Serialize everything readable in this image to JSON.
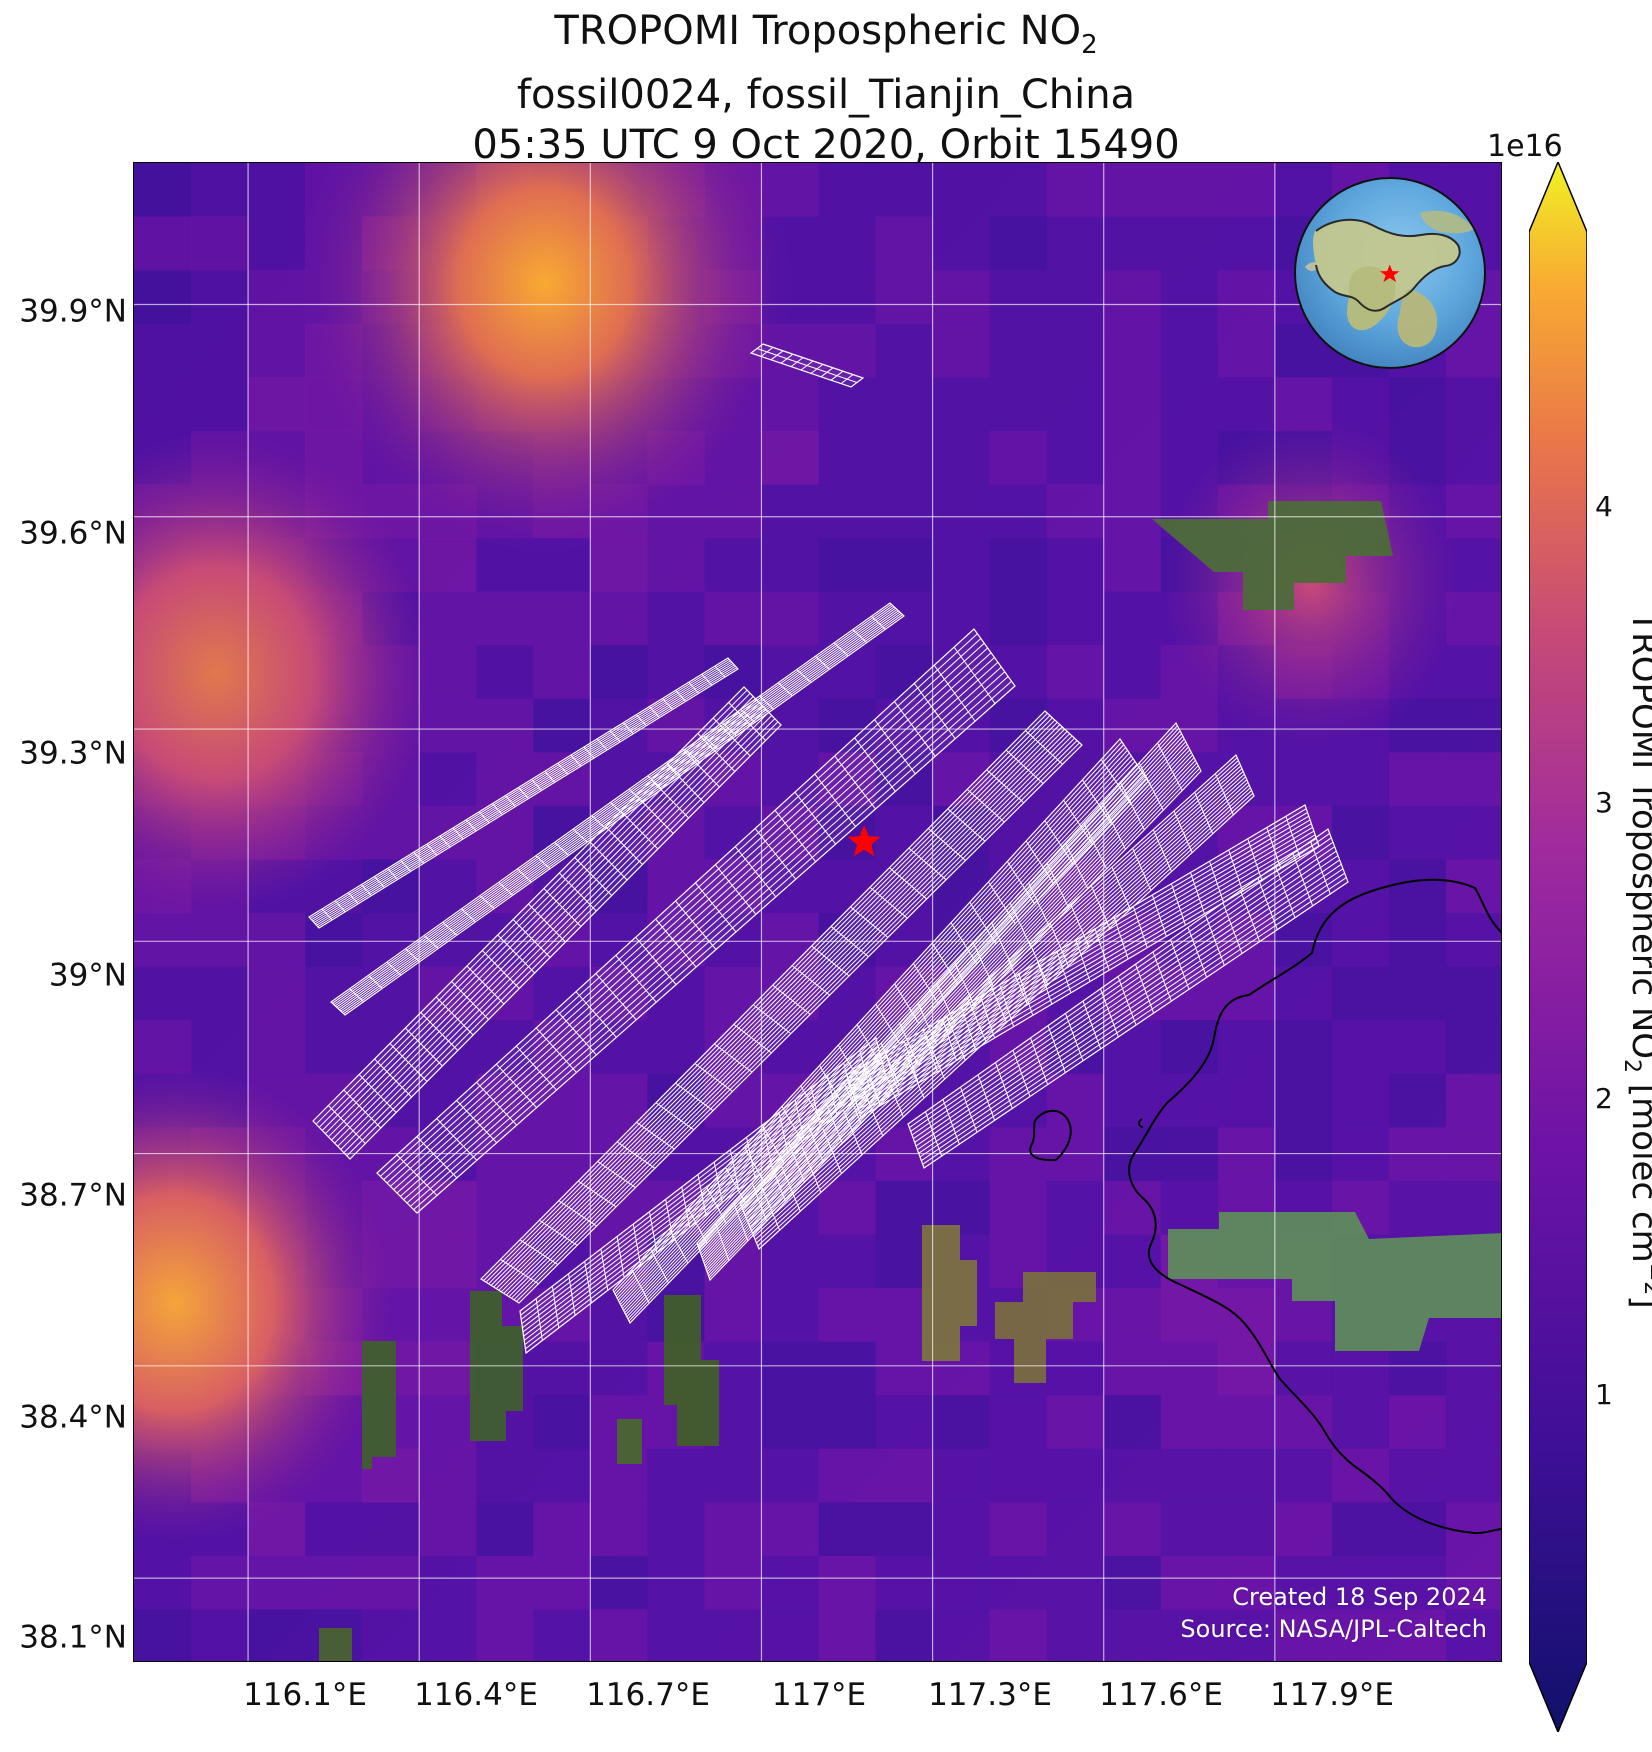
{
  "title": {
    "line1_prefix": "TROPOMI Tropospheric NO",
    "line1_sub": "2",
    "line2": "fossil0024, fossil_Tianjin_China",
    "line3": "05:35 UTC 9 Oct 2020, Orbit 15490"
  },
  "credits": {
    "created": "Created 18 Sep 2024",
    "source": "Source: NASA/JPL-Caltech"
  },
  "colors": {
    "background": "#ffffff",
    "gridline": "#ffffff",
    "overlay_grid": "#ffffff",
    "coastline": "#000000",
    "marker": "#ff0000",
    "colormap": [
      "#10116b",
      "#3e0f97",
      "#6f13a6",
      "#9f2a9e",
      "#c64a77",
      "#e9764a",
      "#f8aa32",
      "#f0f125"
    ]
  },
  "icons": {
    "marker": "red-star-icon",
    "locator": "globe-locator-icon"
  },
  "axes": {
    "x_ticks": [
      "116.1°E",
      "116.4°E",
      "116.7°E",
      "117°E",
      "117.3°E",
      "117.6°E",
      "117.9°E"
    ],
    "y_ticks": [
      "39.9°N",
      "39.6°N",
      "39.3°N",
      "39°N",
      "38.7°N",
      "38.4°N",
      "38.1°N"
    ],
    "x_range": [
      115.9,
      118.3
    ],
    "y_range": [
      37.98,
      40.1
    ]
  },
  "colorbar": {
    "multiplier": "1e16",
    "ticks": [
      "1",
      "2",
      "3",
      "4"
    ],
    "label_prefix": "TROPOMI Tropospheric NO",
    "label_sub": "2",
    "label_middle": " [molec cm",
    "label_sup": "−2",
    "label_suffix": "]",
    "range": [
      0.3,
      4.8
    ]
  },
  "map": {
    "marker": {
      "lon": 117.18,
      "lat": 39.14
    },
    "locator": {
      "star_lon": 117.18,
      "star_lat": 39.14
    }
  }
}
